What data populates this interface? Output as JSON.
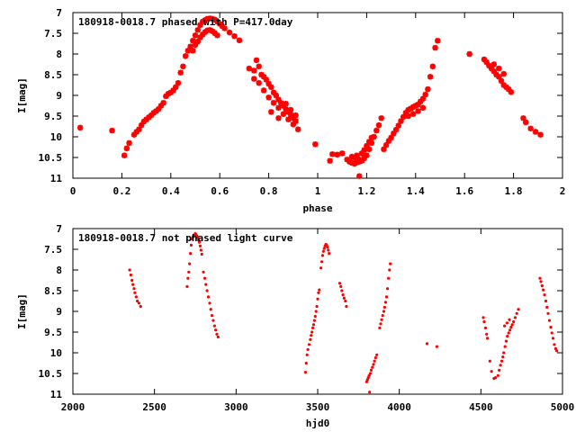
{
  "chart_data": [
    {
      "type": "scatter",
      "title": "180918-0018.7 phased with P=417.0day",
      "xlabel": "phase",
      "ylabel": "I[mag]",
      "xlim": [
        0,
        2
      ],
      "ylim": [
        11,
        7
      ],
      "y_inverted": true,
      "x_ticks": [
        0,
        0.2,
        0.4,
        0.6,
        0.8,
        1,
        1.2,
        1.4,
        1.6,
        1.8,
        2
      ],
      "x_tick_labels": [
        "0",
        "0.2",
        "0.4",
        "0.6",
        "0.8",
        "1",
        "1.2",
        "1.4",
        "1.6",
        "1.8",
        "2"
      ],
      "y_ticks": [
        7,
        7.5,
        8,
        8.5,
        9,
        9.5,
        10,
        10.5,
        11
      ],
      "y_tick_labels": [
        "7",
        "7.5",
        "8",
        "8.5",
        "9",
        "9.5",
        "10",
        "10.5",
        "11"
      ],
      "grid": false,
      "marker_color": "#ff0000",
      "marker": "star",
      "points": [
        [
          0.03,
          9.78
        ],
        [
          0.16,
          9.85
        ],
        [
          0.21,
          10.45
        ],
        [
          0.22,
          10.28
        ],
        [
          0.23,
          10.15
        ],
        [
          0.25,
          9.95
        ],
        [
          0.26,
          9.88
        ],
        [
          0.27,
          9.82
        ],
        [
          0.28,
          9.72
        ],
        [
          0.29,
          9.63
        ],
        [
          0.3,
          9.58
        ],
        [
          0.31,
          9.53
        ],
        [
          0.32,
          9.48
        ],
        [
          0.33,
          9.42
        ],
        [
          0.34,
          9.38
        ],
        [
          0.35,
          9.33
        ],
        [
          0.36,
          9.25
        ],
        [
          0.37,
          9.18
        ],
        [
          0.38,
          9.02
        ],
        [
          0.39,
          8.96
        ],
        [
          0.4,
          8.93
        ],
        [
          0.41,
          8.88
        ],
        [
          0.42,
          8.8
        ],
        [
          0.43,
          8.7
        ],
        [
          0.44,
          8.45
        ],
        [
          0.45,
          8.3
        ],
        [
          0.46,
          8.05
        ],
        [
          0.47,
          7.92
        ],
        [
          0.48,
          7.82
        ],
        [
          0.49,
          7.68
        ],
        [
          0.5,
          7.55
        ],
        [
          0.51,
          7.42
        ],
        [
          0.52,
          7.3
        ],
        [
          0.53,
          7.22
        ],
        [
          0.54,
          7.18
        ],
        [
          0.55,
          7.15
        ],
        [
          0.56,
          7.14
        ],
        [
          0.57,
          7.15
        ],
        [
          0.58,
          7.17
        ],
        [
          0.59,
          7.22
        ],
        [
          0.6,
          7.27
        ],
        [
          0.61,
          7.33
        ],
        [
          0.62,
          7.38
        ],
        [
          0.64,
          7.48
        ],
        [
          0.66,
          7.57
        ],
        [
          0.68,
          7.67
        ],
        [
          0.49,
          7.92
        ],
        [
          0.5,
          7.78
        ],
        [
          0.51,
          7.7
        ],
        [
          0.52,
          7.6
        ],
        [
          0.53,
          7.53
        ],
        [
          0.54,
          7.47
        ],
        [
          0.55,
          7.43
        ],
        [
          0.56,
          7.42
        ],
        [
          0.57,
          7.45
        ],
        [
          0.58,
          7.5
        ],
        [
          0.59,
          7.55
        ],
        [
          0.72,
          8.35
        ],
        [
          0.74,
          8.4
        ],
        [
          0.75,
          8.15
        ],
        [
          0.76,
          8.3
        ],
        [
          0.77,
          8.5
        ],
        [
          0.78,
          8.55
        ],
        [
          0.79,
          8.62
        ],
        [
          0.8,
          8.72
        ],
        [
          0.81,
          8.8
        ],
        [
          0.82,
          8.93
        ],
        [
          0.83,
          9.0
        ],
        [
          0.84,
          9.1
        ],
        [
          0.85,
          9.18
        ],
        [
          0.86,
          9.25
        ],
        [
          0.87,
          9.33
        ],
        [
          0.88,
          9.4
        ],
        [
          0.89,
          9.47
        ],
        [
          0.9,
          9.55
        ],
        [
          0.91,
          9.62
        ],
        [
          0.74,
          8.6
        ],
        [
          0.76,
          8.7
        ],
        [
          0.78,
          8.88
        ],
        [
          0.8,
          9.05
        ],
        [
          0.82,
          9.18
        ],
        [
          0.84,
          9.3
        ],
        [
          0.86,
          9.45
        ],
        [
          0.88,
          9.58
        ],
        [
          0.9,
          9.7
        ],
        [
          0.92,
          9.82
        ],
        [
          0.81,
          9.4
        ],
        [
          0.84,
          9.55
        ],
        [
          0.87,
          9.2
        ],
        [
          0.89,
          9.35
        ],
        [
          0.91,
          9.48
        ],
        [
          0.99,
          10.18
        ],
        [
          1.05,
          10.58
        ],
        [
          1.06,
          10.42
        ],
        [
          1.08,
          10.43
        ],
        [
          1.1,
          10.4
        ],
        [
          1.12,
          10.55
        ],
        [
          1.13,
          10.6
        ],
        [
          1.14,
          10.63
        ],
        [
          1.15,
          10.65
        ],
        [
          1.16,
          10.62
        ],
        [
          1.17,
          10.6
        ],
        [
          1.18,
          10.58
        ],
        [
          1.19,
          10.52
        ],
        [
          1.2,
          10.45
        ],
        [
          1.21,
          10.3
        ],
        [
          1.22,
          10.15
        ],
        [
          1.23,
          10.0
        ],
        [
          1.24,
          9.85
        ],
        [
          1.25,
          9.72
        ],
        [
          1.17,
          10.55
        ],
        [
          1.18,
          10.4
        ],
        [
          1.19,
          10.32
        ],
        [
          1.2,
          10.22
        ],
        [
          1.21,
          10.12
        ],
        [
          1.22,
          10.02
        ],
        [
          1.15,
          10.5
        ],
        [
          1.16,
          10.45
        ],
        [
          1.17,
          10.95
        ],
        [
          1.14,
          10.48
        ],
        [
          1.26,
          9.55
        ],
        [
          1.27,
          10.3
        ],
        [
          1.28,
          10.2
        ],
        [
          1.29,
          10.1
        ],
        [
          1.3,
          10.02
        ],
        [
          1.31,
          9.92
        ],
        [
          1.32,
          9.83
        ],
        [
          1.33,
          9.73
        ],
        [
          1.34,
          9.62
        ],
        [
          1.35,
          9.52
        ],
        [
          1.36,
          9.42
        ],
        [
          1.37,
          9.35
        ],
        [
          1.38,
          9.32
        ],
        [
          1.39,
          9.28
        ],
        [
          1.4,
          9.25
        ],
        [
          1.41,
          9.22
        ],
        [
          1.42,
          9.15
        ],
        [
          1.43,
          9.08
        ],
        [
          1.44,
          8.98
        ],
        [
          1.45,
          8.85
        ],
        [
          1.46,
          8.55
        ],
        [
          1.47,
          8.3
        ],
        [
          1.48,
          7.85
        ],
        [
          1.49,
          7.68
        ],
        [
          1.37,
          9.5
        ],
        [
          1.39,
          9.45
        ],
        [
          1.41,
          9.38
        ],
        [
          1.43,
          9.3
        ],
        [
          1.62,
          8.0
        ],
        [
          1.68,
          8.13
        ],
        [
          1.69,
          8.2
        ],
        [
          1.7,
          8.28
        ],
        [
          1.71,
          8.35
        ],
        [
          1.72,
          8.42
        ],
        [
          1.73,
          8.5
        ],
        [
          1.74,
          8.55
        ],
        [
          1.75,
          8.65
        ],
        [
          1.76,
          8.75
        ],
        [
          1.77,
          8.8
        ],
        [
          1.78,
          8.85
        ],
        [
          1.79,
          8.92
        ],
        [
          1.72,
          8.25
        ],
        [
          1.74,
          8.35
        ],
        [
          1.76,
          8.48
        ],
        [
          1.84,
          9.55
        ],
        [
          1.85,
          9.65
        ],
        [
          1.87,
          9.8
        ],
        [
          1.89,
          9.88
        ],
        [
          1.91,
          9.95
        ]
      ]
    },
    {
      "type": "scatter",
      "title": "180918-0018.7 not phased light curve",
      "xlabel": "hjd0",
      "ylabel": "I[mag]",
      "xlim": [
        2000,
        5000
      ],
      "ylim": [
        11,
        7
      ],
      "y_inverted": true,
      "x_ticks": [
        2000,
        2500,
        3000,
        3500,
        4000,
        4500,
        5000
      ],
      "x_tick_labels": [
        "2000",
        "2500",
        "3000",
        "3500",
        "4000",
        "4500",
        "5000"
      ],
      "y_ticks": [
        7,
        7.5,
        8,
        8.5,
        9,
        9.5,
        10,
        10.5,
        11
      ],
      "y_tick_labels": [
        "7",
        "7.5",
        "8",
        "8.5",
        "9",
        "9.5",
        "10",
        "10.5",
        "11"
      ],
      "grid": false,
      "marker_color": "#ff0000",
      "marker": "dot",
      "points": [
        [
          2348,
          8.0
        ],
        [
          2355,
          8.12
        ],
        [
          2362,
          8.25
        ],
        [
          2368,
          8.35
        ],
        [
          2375,
          8.45
        ],
        [
          2380,
          8.55
        ],
        [
          2388,
          8.65
        ],
        [
          2395,
          8.75
        ],
        [
          2405,
          8.8
        ],
        [
          2415,
          8.88
        ],
        [
          2700,
          8.4
        ],
        [
          2705,
          8.2
        ],
        [
          2710,
          8.05
        ],
        [
          2715,
          7.85
        ],
        [
          2720,
          7.6
        ],
        [
          2725,
          7.4
        ],
        [
          2730,
          7.25
        ],
        [
          2735,
          7.2
        ],
        [
          2740,
          7.18
        ],
        [
          2745,
          7.15
        ],
        [
          2750,
          7.12
        ],
        [
          2755,
          7.15
        ],
        [
          2760,
          7.18
        ],
        [
          2765,
          7.22
        ],
        [
          2770,
          7.28
        ],
        [
          2775,
          7.33
        ],
        [
          2780,
          7.42
        ],
        [
          2785,
          7.52
        ],
        [
          2790,
          7.62
        ],
        [
          2800,
          8.05
        ],
        [
          2808,
          8.2
        ],
        [
          2815,
          8.35
        ],
        [
          2822,
          8.5
        ],
        [
          2830,
          8.65
        ],
        [
          2838,
          8.8
        ],
        [
          2845,
          8.95
        ],
        [
          2852,
          9.1
        ],
        [
          2860,
          9.22
        ],
        [
          2868,
          9.35
        ],
        [
          2875,
          9.45
        ],
        [
          2882,
          9.55
        ],
        [
          2890,
          9.62
        ],
        [
          3425,
          10.47
        ],
        [
          3430,
          10.25
        ],
        [
          3435,
          10.05
        ],
        [
          3440,
          9.92
        ],
        [
          3448,
          9.8
        ],
        [
          3455,
          9.68
        ],
        [
          3460,
          9.58
        ],
        [
          3465,
          9.5
        ],
        [
          3470,
          9.4
        ],
        [
          3475,
          9.32
        ],
        [
          3480,
          9.22
        ],
        [
          3485,
          9.12
        ],
        [
          3490,
          9.0
        ],
        [
          3495,
          8.88
        ],
        [
          3500,
          8.7
        ],
        [
          3505,
          8.55
        ],
        [
          3510,
          8.48
        ],
        [
          3520,
          7.95
        ],
        [
          3525,
          7.8
        ],
        [
          3530,
          7.65
        ],
        [
          3535,
          7.55
        ],
        [
          3540,
          7.48
        ],
        [
          3545,
          7.42
        ],
        [
          3550,
          7.38
        ],
        [
          3555,
          7.4
        ],
        [
          3560,
          7.45
        ],
        [
          3565,
          7.52
        ],
        [
          3570,
          7.6
        ],
        [
          3635,
          8.32
        ],
        [
          3642,
          8.4
        ],
        [
          3648,
          8.5
        ],
        [
          3655,
          8.6
        ],
        [
          3662,
          8.68
        ],
        [
          3670,
          8.75
        ],
        [
          3676,
          8.88
        ],
        [
          3800,
          10.7
        ],
        [
          3805,
          10.65
        ],
        [
          3810,
          10.6
        ],
        [
          3815,
          10.55
        ],
        [
          3818,
          10.95
        ],
        [
          3822,
          10.5
        ],
        [
          3828,
          10.42
        ],
        [
          3835,
          10.35
        ],
        [
          3842,
          10.28
        ],
        [
          3848,
          10.2
        ],
        [
          3855,
          10.12
        ],
        [
          3862,
          10.05
        ],
        [
          3880,
          9.4
        ],
        [
          3886,
          9.3
        ],
        [
          3892,
          9.2
        ],
        [
          3898,
          9.1
        ],
        [
          3905,
          9.0
        ],
        [
          3910,
          8.9
        ],
        [
          3916,
          8.78
        ],
        [
          3922,
          8.65
        ],
        [
          3928,
          8.45
        ],
        [
          3934,
          8.2
        ],
        [
          3940,
          8.0
        ],
        [
          3945,
          7.85
        ],
        [
          4170,
          9.78
        ],
        [
          4230,
          9.85
        ],
        [
          4515,
          9.15
        ],
        [
          4520,
          9.25
        ],
        [
          4528,
          9.4
        ],
        [
          4535,
          9.55
        ],
        [
          4540,
          9.65
        ],
        [
          4555,
          10.2
        ],
        [
          4565,
          10.45
        ],
        [
          4580,
          10.62
        ],
        [
          4590,
          10.6
        ],
        [
          4605,
          10.55
        ],
        [
          4612,
          10.42
        ],
        [
          4620,
          10.3
        ],
        [
          4628,
          10.2
        ],
        [
          4635,
          10.1
        ],
        [
          4640,
          10.0
        ],
        [
          4648,
          9.85
        ],
        [
          4655,
          9.72
        ],
        [
          4662,
          9.6
        ],
        [
          4670,
          9.52
        ],
        [
          4678,
          9.45
        ],
        [
          4685,
          9.38
        ],
        [
          4692,
          9.32
        ],
        [
          4700,
          9.25
        ],
        [
          4710,
          9.15
        ],
        [
          4720,
          9.05
        ],
        [
          4730,
          8.95
        ],
        [
          4645,
          9.35
        ],
        [
          4660,
          9.28
        ],
        [
          4675,
          9.2
        ],
        [
          4862,
          8.2
        ],
        [
          4868,
          8.28
        ],
        [
          4875,
          8.38
        ],
        [
          4882,
          8.48
        ],
        [
          4890,
          8.6
        ],
        [
          4898,
          8.75
        ],
        [
          4905,
          8.9
        ],
        [
          4912,
          9.05
        ],
        [
          4920,
          9.22
        ],
        [
          4928,
          9.38
        ],
        [
          4935,
          9.52
        ],
        [
          4942,
          9.65
        ],
        [
          4950,
          9.8
        ],
        [
          4958,
          9.9
        ],
        [
          4965,
          9.95
        ]
      ]
    }
  ]
}
